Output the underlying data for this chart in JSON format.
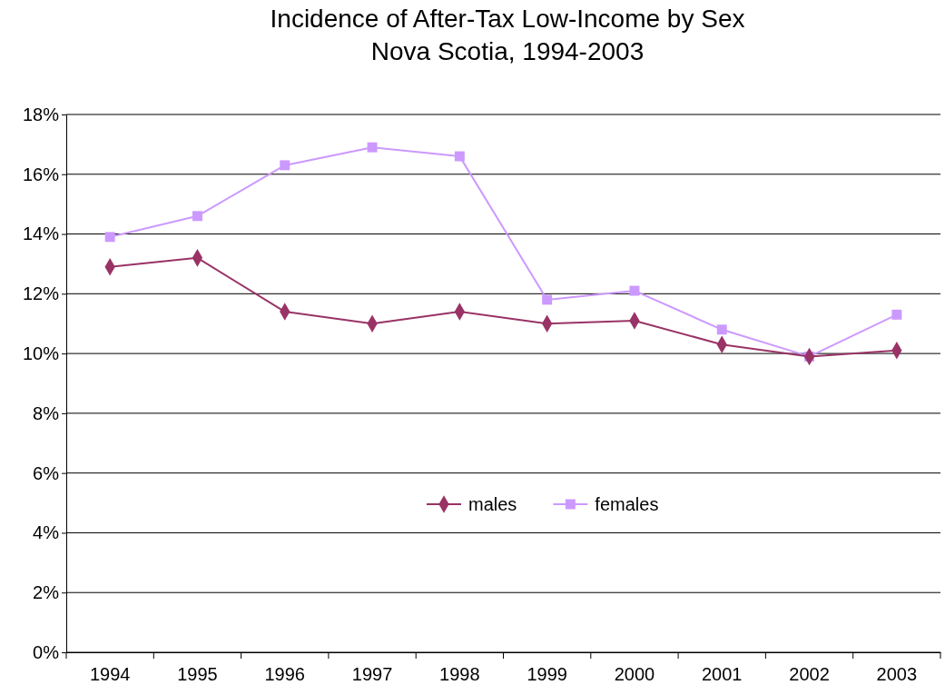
{
  "chart_data": {
    "type": "line",
    "title": "Incidence of After-Tax Low-Income by Sex",
    "subtitle": "Nova Scotia, 1994-2003",
    "categories": [
      "1994",
      "1995",
      "1996",
      "1997",
      "1998",
      "1999",
      "2000",
      "2001",
      "2002",
      "2003"
    ],
    "series": [
      {
        "name": "males",
        "color": "#993366",
        "marker": "diamond",
        "values": [
          12.9,
          13.2,
          11.4,
          11.0,
          11.4,
          11.0,
          11.1,
          10.3,
          9.9,
          10.1
        ]
      },
      {
        "name": "females",
        "color": "#cc99ff",
        "marker": "square",
        "values": [
          13.9,
          14.6,
          16.3,
          16.9,
          16.6,
          11.8,
          12.1,
          10.8,
          9.9,
          11.3
        ]
      }
    ],
    "ylim": [
      0,
      18
    ],
    "yticks": [
      {
        "value": 0,
        "label": "0%"
      },
      {
        "value": 2,
        "label": "2%"
      },
      {
        "value": 4,
        "label": "4%"
      },
      {
        "value": 6,
        "label": "6%"
      },
      {
        "value": 8,
        "label": "8%"
      },
      {
        "value": 10,
        "label": "10%"
      },
      {
        "value": 12,
        "label": "12%"
      },
      {
        "value": 14,
        "label": "14%"
      },
      {
        "value": 16,
        "label": "16%"
      },
      {
        "value": 18,
        "label": "18%"
      }
    ],
    "grid": "y",
    "legend": "bottom",
    "line_style": "solid"
  }
}
